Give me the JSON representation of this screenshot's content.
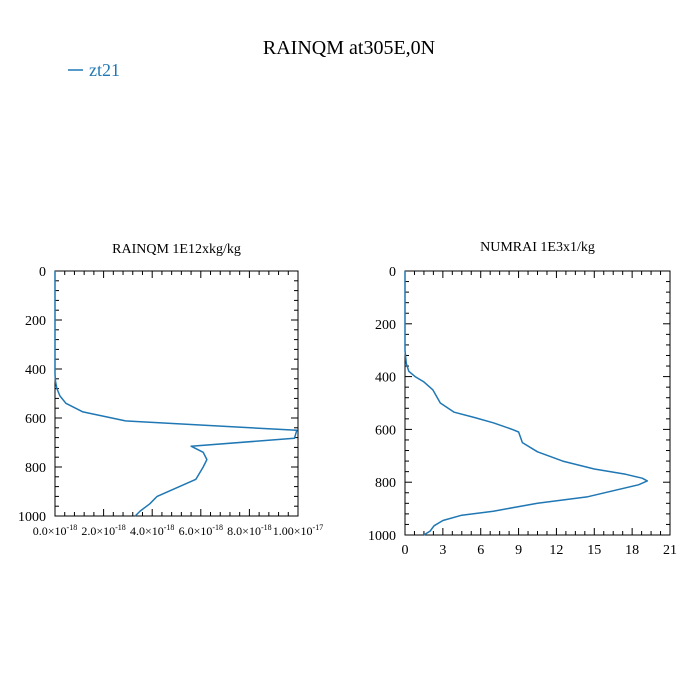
{
  "figure": {
    "title": "RAINQM at305E,0N",
    "legend": {
      "entry": "zt21",
      "color": "#1f77b4"
    }
  },
  "chart_data": [
    {
      "type": "line",
      "title": "RAINQM  1E12xkg/kg",
      "xlim": [
        0,
        1e-17
      ],
      "ylim": [
        1000,
        0
      ],
      "x_ticks": [
        "0.0×10",
        "2.0×10",
        "4.0×10",
        "6.0×10",
        "8.0×10",
        "1.00×10"
      ],
      "x_tick_exponents": [
        "-18",
        "-18",
        "-18",
        "-18",
        "-18",
        "-17"
      ],
      "y_ticks": [
        "0",
        "200",
        "400",
        "600",
        "800",
        "1000"
      ],
      "series": [
        {
          "name": "zt21",
          "x": [
            0,
            0,
            0,
            0,
            0,
            0,
            0,
            2e-20,
            8e-20,
            2e-19,
            4.5e-19,
            1.15e-18,
            2.9e-18,
            9.95e-18,
            9.85e-18,
            5.6e-18,
            6.1e-18,
            6.25e-18,
            6.1e-18,
            5.8e-18,
            4.2e-18,
            3.9e-18,
            3.5e-18,
            3.3e-18
          ],
          "y": [
            0,
            100,
            200,
            300,
            340,
            380,
            420,
            450,
            480,
            510,
            540,
            575,
            612,
            650,
            683,
            715,
            740,
            770,
            800,
            850,
            920,
            950,
            980,
            1000
          ]
        }
      ]
    },
    {
      "type": "line",
      "title": "NUMRAI  1E3x1/kg",
      "xlim": [
        0,
        21
      ],
      "ylim": [
        1000,
        0
      ],
      "x_ticks": [
        "0",
        "3",
        "6",
        "9",
        "12",
        "15",
        "18",
        "21"
      ],
      "y_ticks": [
        "0",
        "200",
        "400",
        "600",
        "800",
        "1000"
      ],
      "series": [
        {
          "name": "zt21",
          "x": [
            0,
            0,
            0,
            0,
            0.1,
            0.3,
            0.8,
            1.5,
            2.2,
            2.8,
            3.9,
            5.5,
            7.0,
            8.5,
            9.0,
            9.3,
            10.5,
            12.5,
            15.0,
            17.5,
            18.8,
            19.2,
            18.5,
            14.5,
            10.5,
            7.0,
            4.5,
            3.0,
            2.3,
            2.0,
            1.5
          ],
          "y": [
            0,
            100,
            200,
            300,
            350,
            380,
            400,
            420,
            450,
            500,
            535,
            555,
            575,
            600,
            610,
            650,
            685,
            720,
            750,
            770,
            785,
            795,
            810,
            855,
            880,
            910,
            925,
            945,
            965,
            985,
            1000
          ]
        }
      ]
    }
  ]
}
